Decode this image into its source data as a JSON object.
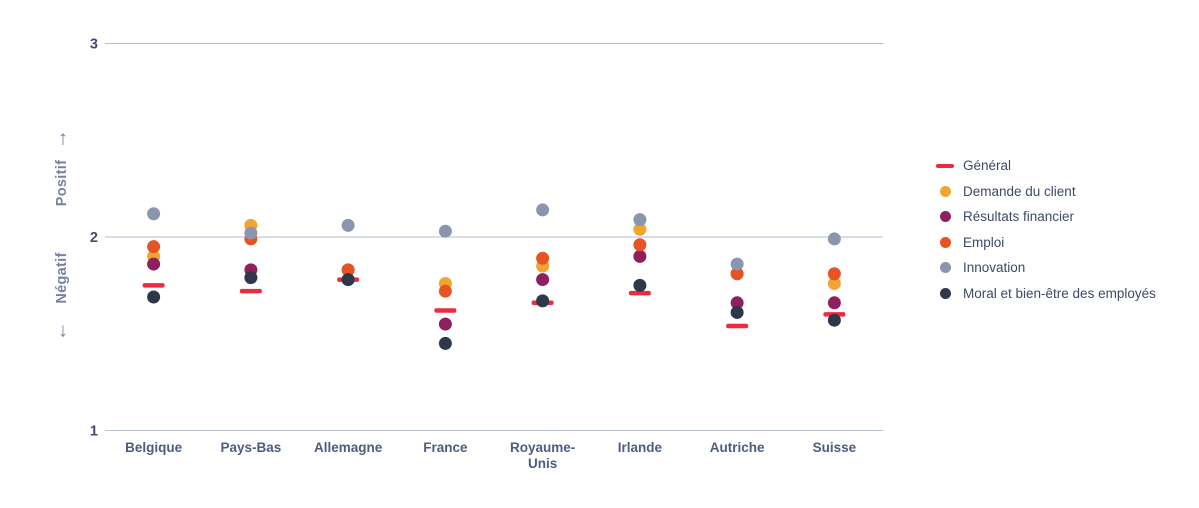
{
  "chart_data": {
    "type": "scatter",
    "title": "",
    "categories": [
      "Belgique",
      "Pays-Bas",
      "Allemagne",
      "France",
      "Royaume-\nUnis",
      "Irlande",
      "Autriche",
      "Suisse"
    ],
    "ylim": [
      1,
      3
    ],
    "yticks": [
      1,
      2,
      3
    ],
    "grid": "horizontal",
    "legend_position": "right",
    "annotations": {
      "positive_label": "Positif",
      "negative_label": "Négatif",
      "up_arrow": "↑",
      "down_arrow": "↓"
    },
    "series": [
      {
        "id": "general",
        "name": "Général",
        "marker": "dash",
        "color": "#ee2b3e",
        "values": [
          1.75,
          1.72,
          1.78,
          1.62,
          1.66,
          1.71,
          1.54,
          1.6
        ]
      },
      {
        "id": "demande-du-client",
        "name": "Demande du client",
        "marker": "dot",
        "color": "#f0a431",
        "values": [
          1.9,
          2.06,
          1.83,
          1.76,
          1.85,
          2.04,
          1.81,
          1.76
        ]
      },
      {
        "id": "resultats-financier",
        "name": "Résultats financier",
        "marker": "dot",
        "color": "#8e2060",
        "values": [
          1.86,
          1.83,
          1.78,
          1.55,
          1.78,
          1.9,
          1.66,
          1.66
        ]
      },
      {
        "id": "emploi",
        "name": "Emploi",
        "marker": "dot",
        "color": "#e65426",
        "values": [
          1.95,
          1.99,
          1.83,
          1.72,
          1.89,
          1.96,
          1.81,
          1.81
        ]
      },
      {
        "id": "innovation",
        "name": "Innovation",
        "marker": "dot",
        "color": "#8b96ae",
        "values": [
          2.12,
          2.02,
          2.06,
          2.03,
          2.14,
          2.09,
          1.86,
          1.99
        ]
      },
      {
        "id": "moral",
        "name": "Moral et bien-être des employés",
        "marker": "dot",
        "color": "#2f3848",
        "values": [
          1.69,
          1.79,
          1.78,
          1.45,
          1.67,
          1.75,
          1.61,
          1.57
        ]
      }
    ],
    "style": {
      "gridline_color": "#b6bed2",
      "tick_color": "#414e6b",
      "category_color": "#4d5d80",
      "legend_text_color": "#3d4a66",
      "direction_color": "#75839f",
      "background": "#ffffff"
    }
  }
}
